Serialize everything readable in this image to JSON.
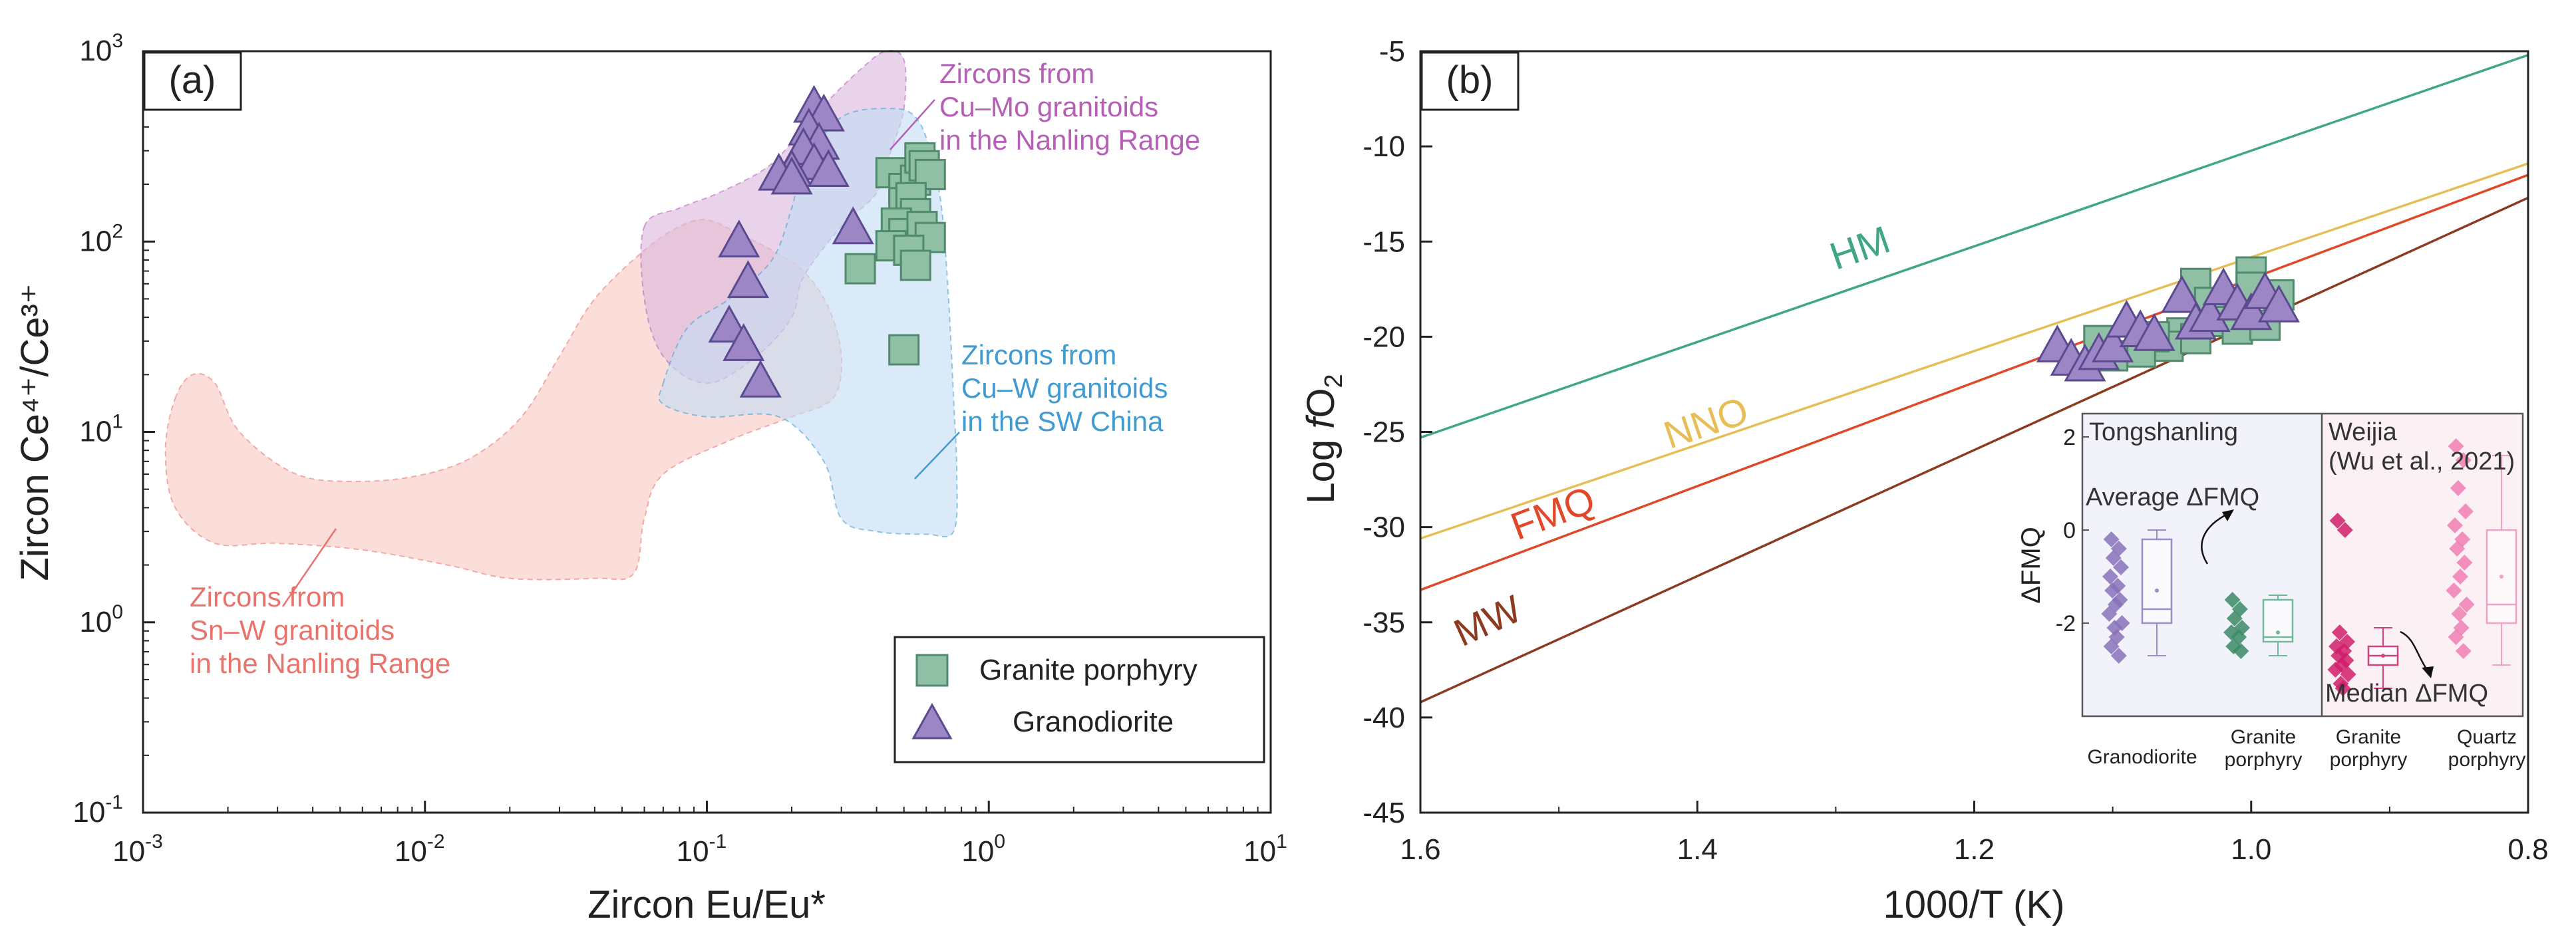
{
  "chart_data": [
    {
      "type": "scatter",
      "panel_label": "(a)",
      "xlabel": "Zircon Eu/Eu*",
      "ylabel": "Zircon Ce⁴⁺/Ce³⁺",
      "x_scale": "log",
      "y_scale": "log",
      "xlim": [
        0.001,
        10
      ],
      "ylim": [
        0.1,
        1000
      ],
      "x_ticks": [
        {
          "value": 0.001,
          "base": "10",
          "exp": "-3"
        },
        {
          "value": 0.01,
          "base": "10",
          "exp": "-2"
        },
        {
          "value": 0.1,
          "base": "10",
          "exp": "-1"
        },
        {
          "value": 1,
          "base": "10",
          "exp": "0"
        },
        {
          "value": 10,
          "base": "10",
          "exp": "1"
        }
      ],
      "y_ticks": [
        {
          "value": 0.1,
          "base": "10",
          "exp": "-1"
        },
        {
          "value": 1,
          "base": "10",
          "exp": "0"
        },
        {
          "value": 10,
          "base": "10",
          "exp": "1"
        },
        {
          "value": 100,
          "base": "10",
          "exp": "2"
        },
        {
          "value": 1000,
          "base": "10",
          "exp": "3"
        }
      ],
      "fields": [
        {
          "label_lines": [
            "Zircons from",
            "Sn–W granitoids",
            "in the Nanling Range"
          ],
          "color": "#f8c8c3",
          "text_color": "#e9736c",
          "polygon": [
            [
              0.0013,
              15
            ],
            [
              0.0015,
              20
            ],
            [
              0.0018,
              18
            ],
            [
              0.0022,
              10
            ],
            [
              0.0035,
              6
            ],
            [
              0.006,
              5.5
            ],
            [
              0.01,
              6
            ],
            [
              0.015,
              7.5
            ],
            [
              0.022,
              12
            ],
            [
              0.03,
              25
            ],
            [
              0.04,
              50
            ],
            [
              0.06,
              90
            ],
            [
              0.08,
              120
            ],
            [
              0.1,
              130
            ],
            [
              0.13,
              110
            ],
            [
              0.17,
              90
            ],
            [
              0.22,
              70
            ],
            [
              0.27,
              45
            ],
            [
              0.3,
              25
            ],
            [
              0.28,
              15
            ],
            [
              0.2,
              12
            ],
            [
              0.12,
              9
            ],
            [
              0.07,
              6
            ],
            [
              0.06,
              3.5
            ],
            [
              0.055,
              1.8
            ],
            [
              0.04,
              1.7
            ],
            [
              0.02,
              1.7
            ],
            [
              0.012,
              2.0
            ],
            [
              0.006,
              2.4
            ],
            [
              0.003,
              2.6
            ],
            [
              0.0018,
              2.6
            ],
            [
              0.0013,
              4
            ],
            [
              0.0012,
              8
            ]
          ]
        },
        {
          "label_lines": [
            "Zircons from",
            "Cu–Mo granitoids",
            "in the Nanling Range"
          ],
          "color": "#dab8dd",
          "text_color": "#b65fb6",
          "polygon": [
            [
              0.06,
              120
            ],
            [
              0.08,
              150
            ],
            [
              0.11,
              180
            ],
            [
              0.16,
              240
            ],
            [
              0.2,
              330
            ],
            [
              0.26,
              520
            ],
            [
              0.35,
              800
            ],
            [
              0.43,
              1000
            ],
            [
              0.5,
              900
            ],
            [
              0.5,
              500
            ],
            [
              0.45,
              300
            ],
            [
              0.4,
              180
            ],
            [
              0.3,
              120
            ],
            [
              0.22,
              65
            ],
            [
              0.2,
              40
            ],
            [
              0.15,
              25
            ],
            [
              0.1,
              18
            ],
            [
              0.07,
              25
            ],
            [
              0.06,
              50
            ]
          ]
        },
        {
          "label_lines": [
            "Zircons from",
            "Cu–W granitoids",
            "in the SW China"
          ],
          "color": "#c3ddf4",
          "text_color": "#3f9bd1",
          "polygon": [
            [
              0.07,
              18
            ],
            [
              0.085,
              35
            ],
            [
              0.12,
              50
            ],
            [
              0.17,
              80
            ],
            [
              0.2,
              150
            ],
            [
              0.22,
              250
            ],
            [
              0.3,
              450
            ],
            [
              0.45,
              500
            ],
            [
              0.55,
              450
            ],
            [
              0.62,
              300
            ],
            [
              0.68,
              150
            ],
            [
              0.72,
              50
            ],
            [
              0.75,
              15
            ],
            [
              0.77,
              6
            ],
            [
              0.75,
              3
            ],
            [
              0.6,
              2.9
            ],
            [
              0.4,
              3.0
            ],
            [
              0.3,
              3.5
            ],
            [
              0.26,
              7
            ],
            [
              0.18,
              12
            ],
            [
              0.1,
              12
            ],
            [
              0.07,
              14
            ]
          ]
        }
      ],
      "series": [
        {
          "name": "Granite porphyry",
          "marker": "square",
          "color": "#8fbfa4",
          "edge": "#4f8a6c",
          "points": [
            [
              0.45,
              230
            ],
            [
              0.5,
              190
            ],
            [
              0.55,
              210
            ],
            [
              0.57,
              275
            ],
            [
              0.59,
              250
            ],
            [
              0.62,
              225
            ],
            [
              0.5,
              160
            ],
            [
              0.53,
              170
            ],
            [
              0.55,
              140
            ],
            [
              0.47,
              125
            ],
            [
              0.5,
              110
            ],
            [
              0.58,
              120
            ],
            [
              0.62,
              105
            ],
            [
              0.45,
              95
            ],
            [
              0.52,
              90
            ],
            [
              0.55,
              75
            ],
            [
              0.35,
              72
            ],
            [
              0.5,
              27
            ]
          ]
        },
        {
          "name": "Granodiorite",
          "marker": "triangle",
          "color": "#9d86c6",
          "edge": "#5b4a8f",
          "points": [
            [
              0.24,
              500
            ],
            [
              0.26,
              450
            ],
            [
              0.23,
              380
            ],
            [
              0.25,
              320
            ],
            [
              0.22,
              300
            ],
            [
              0.24,
              250
            ],
            [
              0.2,
              230
            ],
            [
              0.27,
              230
            ],
            [
              0.18,
              220
            ],
            [
              0.2,
              210
            ],
            [
              0.33,
              115
            ],
            [
              0.13,
              98
            ],
            [
              0.14,
              60
            ],
            [
              0.12,
              35
            ],
            [
              0.135,
              28
            ],
            [
              0.155,
              18
            ]
          ]
        }
      ],
      "legend": {
        "placement": "bottom-right"
      }
    },
    {
      "type": "line",
      "panel_label": "(b)",
      "xlabel": "1000/T (K)",
      "ylabel_prefix": "Log ",
      "ylabel_italic": "f",
      "ylabel_main": "O",
      "ylabel_sub": "2",
      "xlim": [
        1.6,
        0.8
      ],
      "ylim": [
        -45,
        -5
      ],
      "x_ticks": [
        "1.6",
        "1.4",
        "1.2",
        "1.0",
        "0.8"
      ],
      "x_tick_values": [
        1.6,
        1.4,
        1.2,
        1.0,
        0.8
      ],
      "y_ticks": [
        "-5",
        "-10",
        "-15",
        "-20",
        "-25",
        "-30",
        "-35",
        "-40",
        "-45"
      ],
      "y_tick_values": [
        -5,
        -10,
        -15,
        -20,
        -25,
        -30,
        -35,
        -40,
        -45
      ],
      "buffers": [
        {
          "name": "HM",
          "color": "#3fa784",
          "y_at_1_6": -25.3,
          "y_at_0_8": -5.2,
          "label_at": [
            1.3,
            -16.5
          ]
        },
        {
          "name": "NNO",
          "color": "#e6be55",
          "y_at_1_6": -30.6,
          "y_at_0_8": -10.9,
          "label_at": [
            1.42,
            -25.9
          ]
        },
        {
          "name": "FMQ",
          "color": "#e2472a",
          "y_at_1_6": -33.3,
          "y_at_0_8": -11.5,
          "label_at": [
            1.53,
            -30.7
          ]
        },
        {
          "name": "MW",
          "color": "#8c3b21",
          "y_at_1_6": -39.2,
          "y_at_0_8": -12.7,
          "label_at": [
            1.57,
            -36.3
          ]
        }
      ],
      "series": [
        {
          "name": "Granite porphyry",
          "marker": "square",
          "color": "#8fbfa4",
          "edge": "#4f8a6c",
          "points": [
            [
              1.04,
              -17.2
            ],
            [
              1.0,
              -16.6
            ],
            [
              1.0,
              -17.4
            ],
            [
              0.98,
              -17.8
            ],
            [
              1.03,
              -18.2
            ],
            [
              1.02,
              -19.2
            ],
            [
              1.01,
              -19.6
            ],
            [
              0.99,
              -19.4
            ],
            [
              1.05,
              -19.8
            ],
            [
              1.06,
              -20.5
            ],
            [
              1.07,
              -20.0
            ],
            [
              1.04,
              -20.1
            ],
            [
              1.08,
              -20.8
            ],
            [
              1.1,
              -21.0
            ],
            [
              1.11,
              -20.2
            ]
          ]
        },
        {
          "name": "Granodiorite",
          "marker": "triangle",
          "color": "#9d86c6",
          "edge": "#5b4a8f",
          "points": [
            [
              1.14,
              -20.6
            ],
            [
              1.13,
              -21.3
            ],
            [
              1.12,
              -21.6
            ],
            [
              1.11,
              -21.0
            ],
            [
              1.1,
              -20.6
            ],
            [
              1.09,
              -19.3
            ],
            [
              1.08,
              -19.8
            ],
            [
              1.07,
              -20.0
            ],
            [
              1.05,
              -18.0
            ],
            [
              1.04,
              -19.4
            ],
            [
              1.03,
              -19.0
            ],
            [
              1.02,
              -17.6
            ],
            [
              1.01,
              -18.4
            ],
            [
              1.0,
              -18.9
            ],
            [
              0.99,
              -17.8
            ],
            [
              0.98,
              -18.5
            ]
          ]
        }
      ],
      "inset": {
        "ylabel": "ΔFMQ",
        "ylim": [
          -4,
          2.5
        ],
        "y_ticks": [
          "2",
          "0",
          "-2"
        ],
        "y_tick_values": [
          2,
          0,
          -2
        ],
        "group_left": "Tongshanling",
        "group_right_lines": [
          "Weijia",
          "(Wu et al., 2021)"
        ],
        "annotation_average": "Average ΔFMQ",
        "annotation_median": "Median ΔFMQ",
        "categories": [
          {
            "label_lines": [
              "Granodiorite"
            ],
            "color": "#8872b8",
            "box_color": "#9b8cc8",
            "q1": -2.0,
            "median": -1.7,
            "q3": -0.2,
            "whisker_low": -2.7,
            "whisker_high": 0.0,
            "mean": -1.3,
            "points": [
              -0.2,
              -0.4,
              -0.6,
              -0.8,
              -1.0,
              -1.2,
              -1.3,
              -1.5,
              -1.6,
              -1.8,
              -2.0,
              -2.1,
              -2.3,
              -2.5,
              -2.7
            ]
          },
          {
            "label_lines": [
              "Granite",
              "porphyry"
            ],
            "color": "#3c8a66",
            "box_color": "#6fb89a",
            "q1": -2.4,
            "median": -2.3,
            "q3": -1.5,
            "whisker_low": -2.7,
            "whisker_high": -1.4,
            "mean": -2.2,
            "points": [
              -1.5,
              -1.7,
              -1.9,
              -2.1,
              -2.2,
              -2.3,
              -2.5,
              -2.6
            ]
          },
          {
            "label_lines": [
              "Granite",
              "porphyry"
            ],
            "color": "#cf1f6a",
            "box_color": "#d4417e",
            "q1": -2.9,
            "median": -2.7,
            "q3": -2.5,
            "whisker_low": -3.4,
            "whisker_high": -2.1,
            "mean": -2.7,
            "points": [
              0.2,
              0.0,
              -2.2,
              -2.4,
              -2.5,
              -2.6,
              -2.7,
              -2.8,
              -2.9,
              -3.0,
              -3.1,
              -3.3,
              -3.4
            ]
          },
          {
            "label_lines": [
              "Quartz",
              "porphyry"
            ],
            "color": "#ee7fb1",
            "box_color": "#f2a0c6",
            "q1": -2.0,
            "median": -1.6,
            "q3": 0.0,
            "whisker_low": -2.9,
            "whisker_high": 1.6,
            "mean": -1.0,
            "points": [
              1.8,
              1.5,
              0.9,
              0.4,
              0.1,
              -0.2,
              -0.4,
              -0.7,
              -1.0,
              -1.3,
              -1.6,
              -1.8,
              -2.1,
              -2.3,
              -2.6
            ]
          }
        ]
      }
    }
  ]
}
